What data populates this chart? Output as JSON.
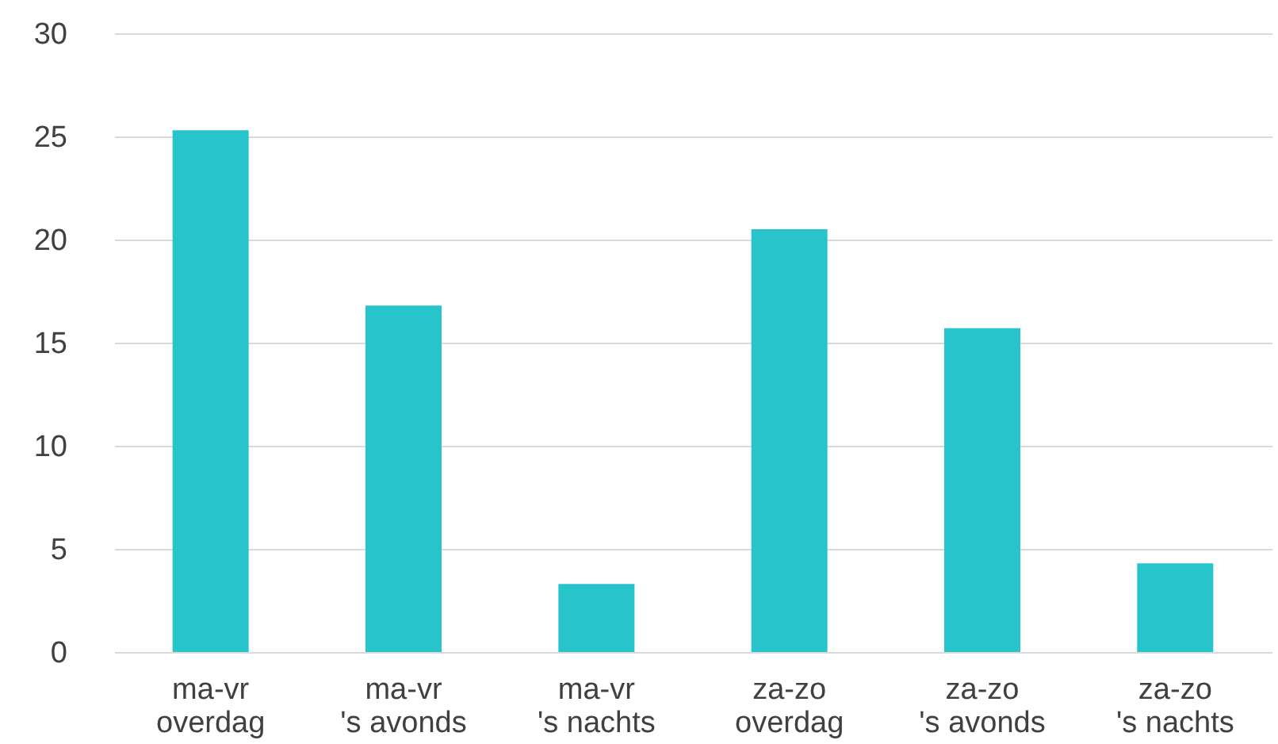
{
  "chart_data": {
    "type": "bar",
    "categories": [
      "ma-vr\noverdag",
      "ma-vr\n's avonds",
      "ma-vr\n's nachts",
      "za-zo\noverdag",
      "za-zo\n's avonds",
      "za-zo\n's nachts"
    ],
    "values": [
      25.3,
      16.8,
      3.3,
      20.5,
      15.7,
      4.3
    ],
    "color": "#27c4cb",
    "ylim": [
      0,
      30
    ],
    "yticks": [
      0,
      5,
      10,
      15,
      20,
      25,
      30
    ],
    "grid": "y"
  }
}
